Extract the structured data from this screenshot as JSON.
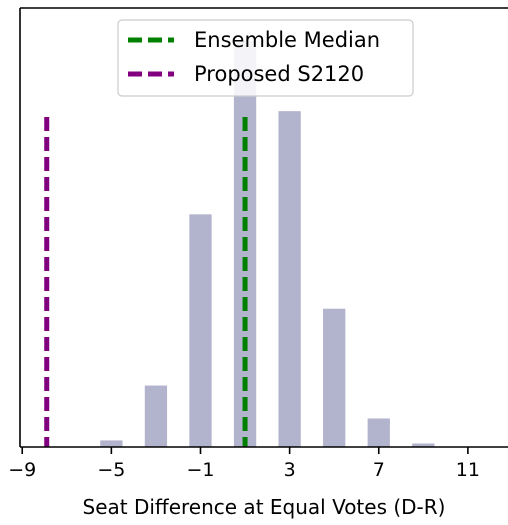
{
  "chart_data": {
    "type": "bar",
    "title": "",
    "xlabel": "Seat Difference at Equal Votes (D-R)",
    "ylabel": "",
    "xlim": [
      -9.1,
      12.8
    ],
    "ylim": [
      0,
      1.0
    ],
    "x_ticks": [
      -9,
      -5,
      -1,
      3,
      7,
      11
    ],
    "x_tick_labels": [
      "−9",
      "−5",
      "−1",
      "3",
      "7",
      "11"
    ],
    "y_ticks_visible": false,
    "grid": false,
    "bar_color": "#b2b3cc",
    "bar_width": 1.0,
    "bars": {
      "x": [
        -5,
        -3,
        -1,
        1,
        3,
        5,
        7,
        9
      ],
      "values": [
        0.015,
        0.14,
        0.53,
        0.925,
        0.765,
        0.315,
        0.065,
        0.008
      ]
    },
    "reference_lines": [
      {
        "name": "Ensemble Median",
        "x": 1,
        "color": "#008000",
        "style": "dashed"
      },
      {
        "name": "Proposed S2120",
        "x": -7.9,
        "color": "#800080",
        "style": "dashed"
      }
    ],
    "legend": {
      "placement": "top-center",
      "entries": [
        "Ensemble Median",
        "Proposed S2120"
      ]
    }
  }
}
